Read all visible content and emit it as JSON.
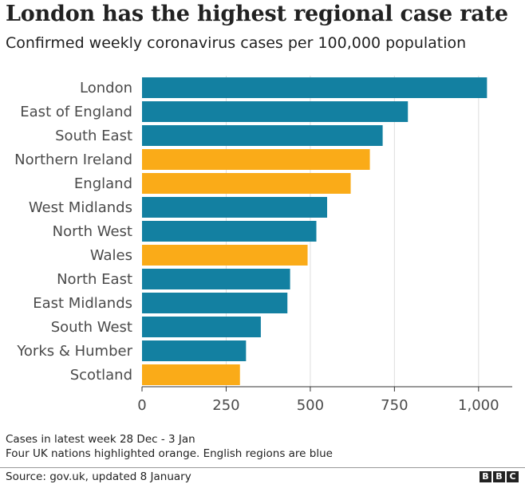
{
  "chart_data": {
    "type": "bar",
    "orientation": "horizontal",
    "title": "London has the highest regional case rate",
    "subtitle": "Confirmed weekly coronavirus cases per 100,000 population",
    "categories": [
      "London",
      "East of England",
      "South East",
      "Northern Ireland",
      "England",
      "West Midlands",
      "North West",
      "Wales",
      "North East",
      "East Midlands",
      "South West",
      "Yorks & Humber",
      "Scotland"
    ],
    "values": [
      1025,
      790,
      715,
      677,
      620,
      550,
      518,
      492,
      440,
      432,
      353,
      309,
      291
    ],
    "highlight": [
      false,
      false,
      false,
      true,
      true,
      false,
      false,
      true,
      false,
      false,
      false,
      false,
      true
    ],
    "colors": {
      "region": "#1380a1",
      "nation": "#faab18",
      "grid": "#dddddd",
      "axis": "#333333"
    },
    "xlim": [
      0,
      1100
    ],
    "xticks": [
      0,
      250,
      500,
      750,
      1000
    ],
    "xtick_labels": [
      "0",
      "250",
      "500",
      "750",
      "1,000"
    ],
    "xlabel": "",
    "ylabel": "",
    "grid": true
  },
  "notes": {
    "line1": "Cases in latest week 28 Dec - 3 Jan",
    "line2": "Four UK nations highlighted orange. English regions are blue"
  },
  "source": "Source: gov.uk, updated 8 January",
  "logo": [
    "B",
    "B",
    "C"
  ]
}
